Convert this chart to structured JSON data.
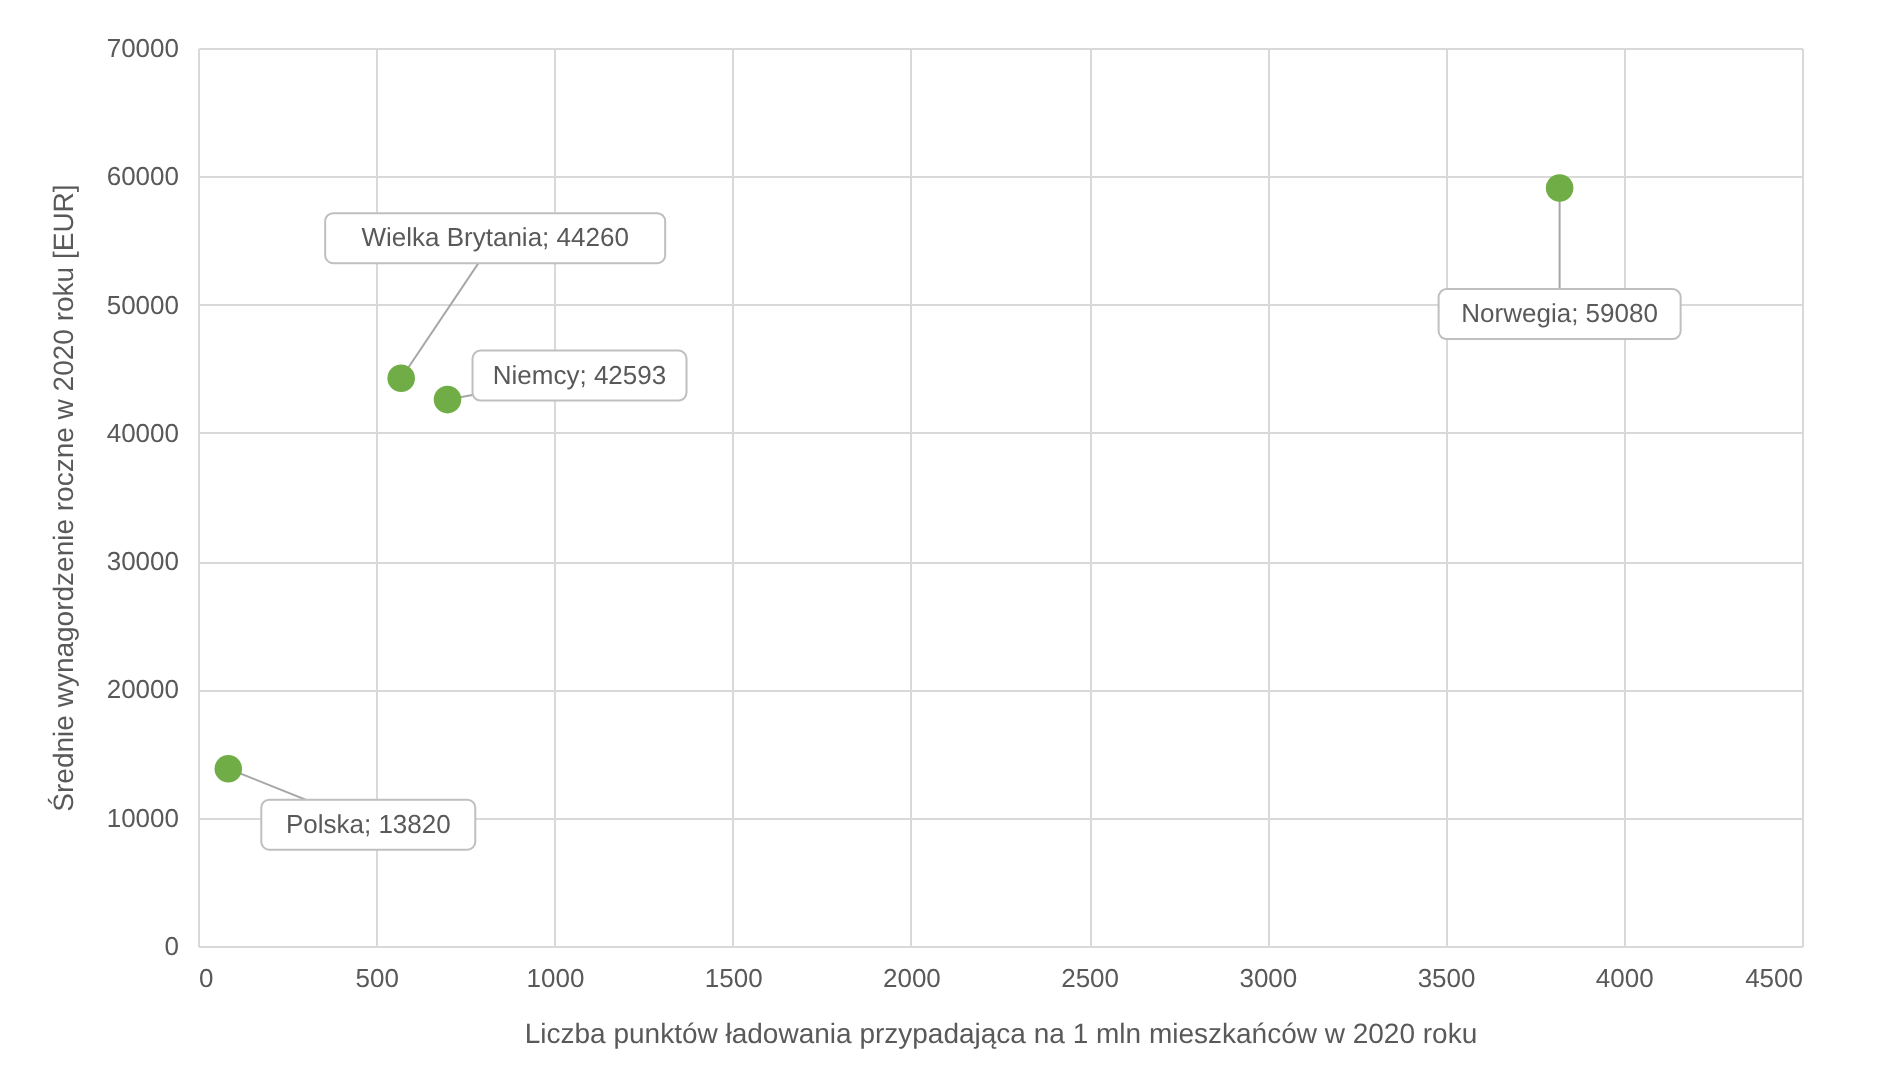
{
  "chart_data": {
    "type": "scatter",
    "xlabel": "Liczba punktów ładowania przypadająca na 1 mln mieszkańców w 2020 roku",
    "ylabel": "Średnie wynagordzenie roczne w 2020 roku [EUR]",
    "x": [
      85,
      570,
      700,
      3820
    ],
    "values": [
      13820,
      44260,
      42593,
      59080
    ],
    "value_labels": [
      "Polska; 13820",
      "Wielka Brytania; 44260",
      "Niemcy; 42593",
      "Norwegia; 59080"
    ],
    "color": "#70ad47",
    "marker": "circle",
    "xlim": [
      0,
      4500
    ],
    "xticks": [
      0,
      500,
      1000,
      1500,
      2000,
      2500,
      3000,
      3500,
      4000,
      4500
    ],
    "ylim": [
      0,
      70000
    ],
    "yticks": [
      0,
      10000,
      20000,
      30000,
      40000,
      50000,
      60000,
      70000
    ],
    "grid": true
  }
}
